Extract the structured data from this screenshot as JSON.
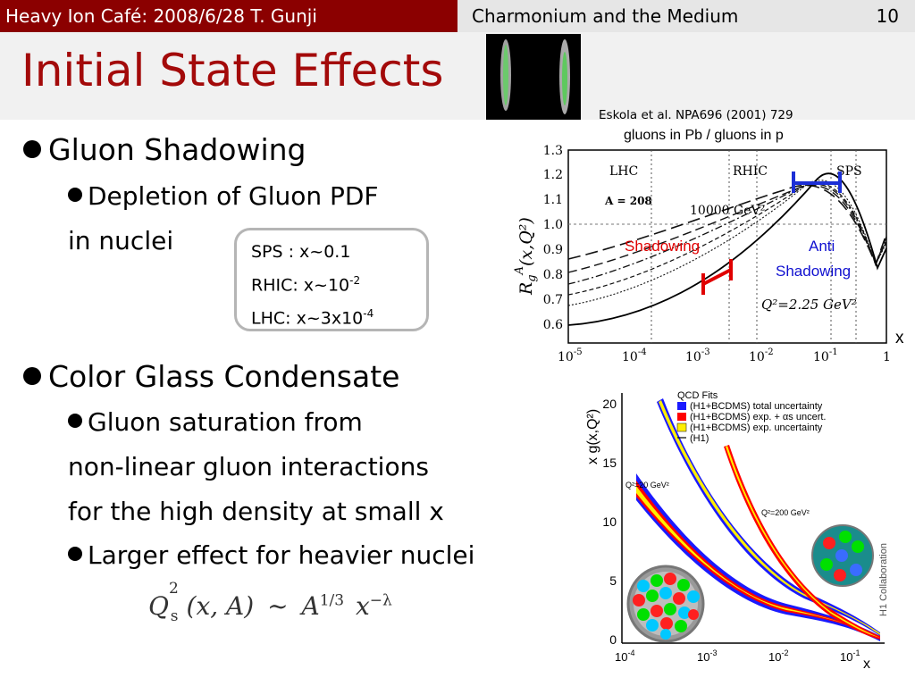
{
  "header": {
    "left": "Heavy Ion Café: 2008/6/28 T. Gunji",
    "topic": "Charmonium and the Medium",
    "page_number": "10"
  },
  "title": "Initial State Effects",
  "bullets": {
    "gluon_shadowing": "Gluon Shadowing",
    "depletion_line1": "Depletion of Gluon PDF",
    "depletion_line2": "in nuclei",
    "cgc": "Color Glass Condensate",
    "saturation_line1": "Gluon saturation from",
    "saturation_line2": "non-linear gluon interactions",
    "saturation_line3": "for the high density at small x",
    "heavier": "Larger effect for heavier nuclei"
  },
  "x_box": {
    "sps": "SPS : x~0.1",
    "rhic_base": "RHIC: x~10",
    "rhic_exp": "-2",
    "lhc_base": "LHC: x~3x10",
    "lhc_exp": "-4"
  },
  "formula": {
    "q": "Q",
    "sub": "s",
    "sup": "2",
    "args": "(x, A)",
    "sim": "~",
    "a": "A",
    "a_exp": "1/3",
    "x": "x",
    "x_exp": "−λ"
  },
  "shadowing_plot": {
    "citation": "Eskola et al. NPA696 (2001) 729",
    "subtitle": "gluons in Pb / gluons in p",
    "y_label": "R",
    "y_label_sub": "g",
    "y_label_sup": "A",
    "y_label_args": "(x,Q²)",
    "x_axis_label": "x",
    "y_ticks": [
      "1.3",
      "1.2",
      "1.1",
      "1.0",
      "0.9",
      "0.8",
      "0.7",
      "0.6"
    ],
    "x_tick_bases": [
      "10",
      "10",
      "10",
      "10",
      "10",
      "1"
    ],
    "x_tick_exps": [
      "-5",
      "-4",
      "-3",
      "-2",
      "-1",
      ""
    ],
    "region_lhc": "LHC",
    "region_rhic": "RHIC",
    "region_sps": "SPS",
    "a_label": "A = 208",
    "q_high": "10000 GeV²",
    "q_low": "Q²=2.25 GeV²",
    "annot_shadowing": "Shadowing",
    "annot_anti1": "Anti",
    "annot_anti2": "Shadowing",
    "colors": {
      "shadowing": "#e00000",
      "anti": "#1010d0"
    }
  },
  "gluon_plot": {
    "y_label": "x g(x,Q²)",
    "x_axis_label": "x",
    "y_ticks": [
      "20",
      "15",
      "10",
      "5",
      "0"
    ],
    "x_tick_bases": [
      "10",
      "10",
      "10",
      "10"
    ],
    "x_tick_exps": [
      "-4",
      "-3",
      "-2",
      "-1"
    ],
    "legend_title": "QCD Fits",
    "legend": [
      {
        "label": "(H1+BCDMS) total uncertainty",
        "color": "#1a1aff"
      },
      {
        "label": "(H1+BCDMS) exp. + αs uncert.",
        "color": "#ff0000"
      },
      {
        "label": "(H1+BCDMS) exp. uncertainty",
        "color": "#ffee00"
      },
      {
        "label": "(H1)",
        "color": "#000000"
      }
    ],
    "q_label_low": "Q²=20 GeV²",
    "q_label_high": "Q²=200 GeV²",
    "collaboration": "H1 Collaboration"
  }
}
